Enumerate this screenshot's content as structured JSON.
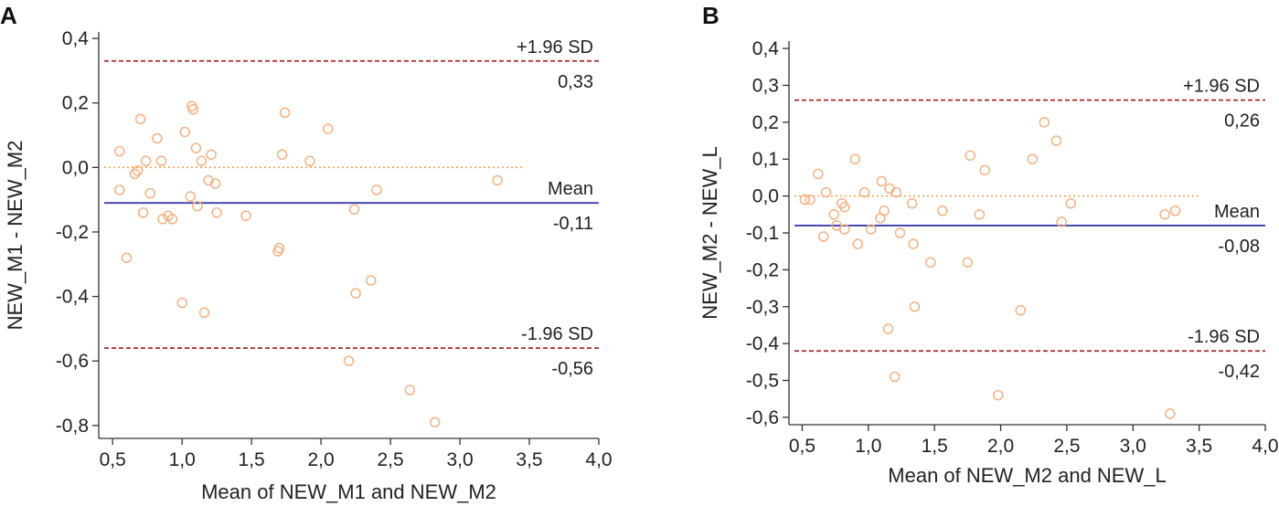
{
  "chart_data": [
    {
      "panel": "A",
      "type": "scatter",
      "xlabel": "Mean of NEW_M1 and NEW_M2",
      "ylabel": "NEW_M1 - NEW_M2",
      "xlim": [
        0.4,
        4.0
      ],
      "ylim": [
        -0.84,
        0.42
      ],
      "xticks": [
        0.5,
        1.0,
        1.5,
        2.0,
        2.5,
        3.0,
        3.5,
        4.0
      ],
      "xtick_labels": [
        "0,5",
        "1,0",
        "1,5",
        "2,0",
        "2,5",
        "3,0",
        "3,5",
        "4,0"
      ],
      "yticks": [
        0.4,
        0.2,
        0.0,
        -0.2,
        -0.4,
        -0.6,
        -0.8
      ],
      "ytick_labels": [
        "0,4",
        "0,2",
        "0,0",
        "-0,2",
        "-0,4",
        "-0,6",
        "-0,8"
      ],
      "zero_line_end": 3.45,
      "lines": [
        {
          "name": "upper",
          "value": 0.33,
          "top_label": "+1.96 SD",
          "bottom_label": "0,33",
          "color": "#a52a2a",
          "style": "dashed"
        },
        {
          "name": "mean",
          "value": -0.11,
          "top_label": "Mean",
          "bottom_label": "-0,11",
          "color": "#3d3db0",
          "style": "solid"
        },
        {
          "name": "lower",
          "value": -0.56,
          "top_label": "-1.96 SD",
          "bottom_label": "-0,56",
          "color": "#a52a2a",
          "style": "dashed"
        }
      ],
      "points": [
        [
          0.55,
          0.05
        ],
        [
          0.55,
          -0.07
        ],
        [
          0.6,
          -0.28
        ],
        [
          0.66,
          -0.02
        ],
        [
          0.68,
          -0.01
        ],
        [
          0.7,
          0.15
        ],
        [
          0.72,
          -0.14
        ],
        [
          0.74,
          0.02
        ],
        [
          0.77,
          -0.08
        ],
        [
          0.82,
          0.09
        ],
        [
          0.85,
          0.02
        ],
        [
          0.86,
          -0.16
        ],
        [
          0.9,
          -0.15
        ],
        [
          0.93,
          -0.16
        ],
        [
          1.0,
          -0.42
        ],
        [
          1.02,
          0.11
        ],
        [
          1.06,
          -0.09
        ],
        [
          1.07,
          0.19
        ],
        [
          1.08,
          0.18
        ],
        [
          1.1,
          0.06
        ],
        [
          1.11,
          -0.12
        ],
        [
          1.14,
          0.02
        ],
        [
          1.16,
          -0.45
        ],
        [
          1.19,
          -0.04
        ],
        [
          1.21,
          0.04
        ],
        [
          1.24,
          -0.05
        ],
        [
          1.25,
          -0.14
        ],
        [
          1.46,
          -0.15
        ],
        [
          1.69,
          -0.26
        ],
        [
          1.7,
          -0.25
        ],
        [
          1.72,
          0.04
        ],
        [
          1.74,
          0.17
        ],
        [
          1.92,
          0.02
        ],
        [
          2.05,
          0.12
        ],
        [
          2.2,
          -0.6
        ],
        [
          2.24,
          -0.13
        ],
        [
          2.25,
          -0.39
        ],
        [
          2.36,
          -0.35
        ],
        [
          2.4,
          -0.07
        ],
        [
          2.64,
          -0.69
        ],
        [
          2.82,
          -0.79
        ],
        [
          3.27,
          -0.04
        ]
      ]
    },
    {
      "panel": "B",
      "type": "scatter",
      "xlabel": "Mean of NEW_M2 and NEW_L",
      "ylabel": "NEW_M2 - NEW_L",
      "xlim": [
        0.4,
        4.0
      ],
      "ylim": [
        -0.62,
        0.42
      ],
      "xticks": [
        0.5,
        1.0,
        1.5,
        2.0,
        2.5,
        3.0,
        3.5,
        4.0
      ],
      "xtick_labels": [
        "0,5",
        "1,0",
        "1,5",
        "2,0",
        "2,5",
        "3,0",
        "3,5",
        "4,0"
      ],
      "yticks": [
        0.4,
        0.3,
        0.2,
        0.1,
        0.0,
        -0.1,
        -0.2,
        -0.3,
        -0.4,
        -0.5,
        -0.6
      ],
      "ytick_labels": [
        "0,4",
        "0,3",
        "0,2",
        "0,1",
        "0,0",
        "-0,1",
        "-0,2",
        "-0,3",
        "-0,4",
        "-0,5",
        "-0,6"
      ],
      "zero_line_end": 3.5,
      "lines": [
        {
          "name": "upper",
          "value": 0.26,
          "top_label": "+1.96 SD",
          "bottom_label": "0,26",
          "color": "#a52a2a",
          "style": "dashed"
        },
        {
          "name": "mean",
          "value": -0.08,
          "top_label": "Mean",
          "bottom_label": "-0,08",
          "color": "#3d3db0",
          "style": "solid"
        },
        {
          "name": "lower",
          "value": -0.42,
          "top_label": "-1.96 SD",
          "bottom_label": "-0,42",
          "color": "#a52a2a",
          "style": "dashed"
        }
      ],
      "points": [
        [
          0.52,
          -0.01
        ],
        [
          0.56,
          -0.01
        ],
        [
          0.62,
          0.06
        ],
        [
          0.66,
          -0.11
        ],
        [
          0.68,
          0.01
        ],
        [
          0.74,
          -0.05
        ],
        [
          0.76,
          -0.08
        ],
        [
          0.8,
          -0.02
        ],
        [
          0.82,
          -0.09
        ],
        [
          0.82,
          -0.03
        ],
        [
          0.9,
          0.1
        ],
        [
          0.92,
          -0.13
        ],
        [
          0.97,
          0.01
        ],
        [
          1.02,
          -0.09
        ],
        [
          1.09,
          -0.06
        ],
        [
          1.1,
          0.04
        ],
        [
          1.12,
          -0.04
        ],
        [
          1.15,
          -0.36
        ],
        [
          1.16,
          0.02
        ],
        [
          1.2,
          -0.49
        ],
        [
          1.21,
          0.01
        ],
        [
          1.24,
          -0.1
        ],
        [
          1.33,
          -0.02
        ],
        [
          1.34,
          -0.13
        ],
        [
          1.35,
          -0.3
        ],
        [
          1.47,
          -0.18
        ],
        [
          1.56,
          -0.04
        ],
        [
          1.75,
          -0.18
        ],
        [
          1.77,
          0.11
        ],
        [
          1.84,
          -0.05
        ],
        [
          1.88,
          0.07
        ],
        [
          1.98,
          -0.54
        ],
        [
          2.15,
          -0.31
        ],
        [
          2.24,
          0.1
        ],
        [
          2.33,
          0.2
        ],
        [
          2.42,
          0.15
        ],
        [
          2.46,
          -0.07
        ],
        [
          2.53,
          -0.02
        ],
        [
          3.24,
          -0.05
        ],
        [
          3.28,
          -0.59
        ],
        [
          3.32,
          -0.04
        ]
      ]
    }
  ],
  "colors": {
    "point": "#f4b183",
    "zero_line": "#f0a050",
    "sd_line": "#a52a2a",
    "mean_line": "#3d3db0",
    "axis": "#333333"
  }
}
